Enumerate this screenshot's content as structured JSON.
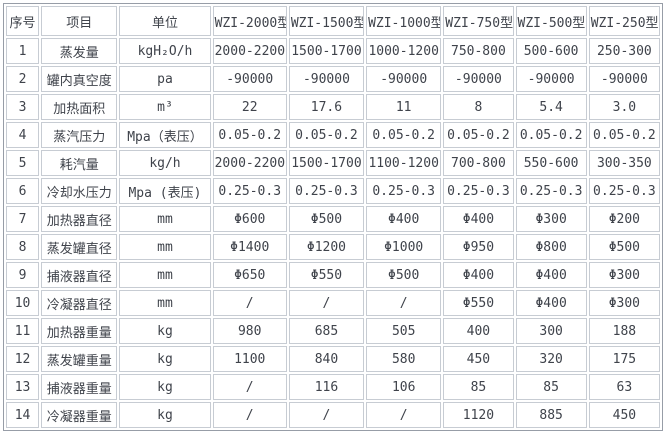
{
  "table": {
    "columns": [
      "序号",
      "项目",
      "单位",
      "WZI-2000型",
      "WZI-1500型",
      "WZI-1000型",
      "WZI-750型",
      "WZI-500型",
      "WZI-250型"
    ],
    "rows": [
      {
        "no": "1",
        "item": "蒸发量",
        "unit": "kgH₂O/h",
        "values": [
          "2000-2200",
          "1500-1700",
          "1000-1200",
          "750-800",
          "500-600",
          "250-300"
        ]
      },
      {
        "no": "2",
        "item": "罐内真空度",
        "unit": "pa",
        "values": [
          "-90000",
          "-90000",
          "-90000",
          "-90000",
          "-90000",
          "-90000"
        ]
      },
      {
        "no": "3",
        "item": "加热面积",
        "unit": "m³",
        "values": [
          "22",
          "17.6",
          "11",
          "8",
          "5.4",
          "3.0"
        ]
      },
      {
        "no": "4",
        "item": "蒸汽压力",
        "unit": "Mpa（表压）",
        "values": [
          "0.05-0.2",
          "0.05-0.2",
          "0.05-0.2",
          "0.05-0.2",
          "0.05-0.2",
          "0.05-0.2"
        ]
      },
      {
        "no": "5",
        "item": "耗汽量",
        "unit": "kg/h",
        "values": [
          "2000-2200",
          "1500-1700",
          "1100-1200",
          "700-800",
          "550-600",
          "300-350"
        ]
      },
      {
        "no": "6",
        "item": "冷却水压力",
        "unit": "Mpa (表压)",
        "values": [
          "0.25-0.3",
          "0.25-0.3",
          "0.25-0.3",
          "0.25-0.3",
          "0.25-0.3",
          "0.25-0.3"
        ]
      },
      {
        "no": "7",
        "item": "加热器直径",
        "unit": "mm",
        "values": [
          "Φ600",
          "Φ500",
          "Φ400",
          "Φ400",
          "Φ300",
          "Φ200"
        ]
      },
      {
        "no": "8",
        "item": "蒸发罐直径",
        "unit": "mm",
        "values": [
          "Φ1400",
          "Φ1200",
          "Φ1000",
          "Φ950",
          "Φ800",
          "Φ500"
        ]
      },
      {
        "no": "9",
        "item": "捕液器直径",
        "unit": "mm",
        "values": [
          "Φ650",
          "Φ550",
          "Φ500",
          "Φ400",
          "Φ400",
          "Φ300"
        ]
      },
      {
        "no": "10",
        "item": "冷凝器直径",
        "unit": "mm",
        "values": [
          "/",
          "/",
          "/",
          "Φ550",
          "Φ400",
          "Φ300"
        ]
      },
      {
        "no": "11",
        "item": "加热器重量",
        "unit": "kg",
        "values": [
          "980",
          "685",
          "505",
          "400",
          "300",
          "188"
        ]
      },
      {
        "no": "12",
        "item": "蒸发罐重量",
        "unit": "kg",
        "values": [
          "1100",
          "840",
          "580",
          "450",
          "320",
          "175"
        ]
      },
      {
        "no": "13",
        "item": "捕液器重量",
        "unit": "kg",
        "values": [
          "/",
          "116",
          "106",
          "85",
          "85",
          "63"
        ]
      },
      {
        "no": "14",
        "item": "冷凝器重量",
        "unit": "kg",
        "values": [
          "/",
          "/",
          "/",
          "1120",
          "885",
          "450"
        ]
      }
    ]
  },
  "colors": {
    "outer_border": "#979da7",
    "cell_border": "#c7ccd3",
    "text": "#3f434b",
    "background": "#ffffff"
  }
}
